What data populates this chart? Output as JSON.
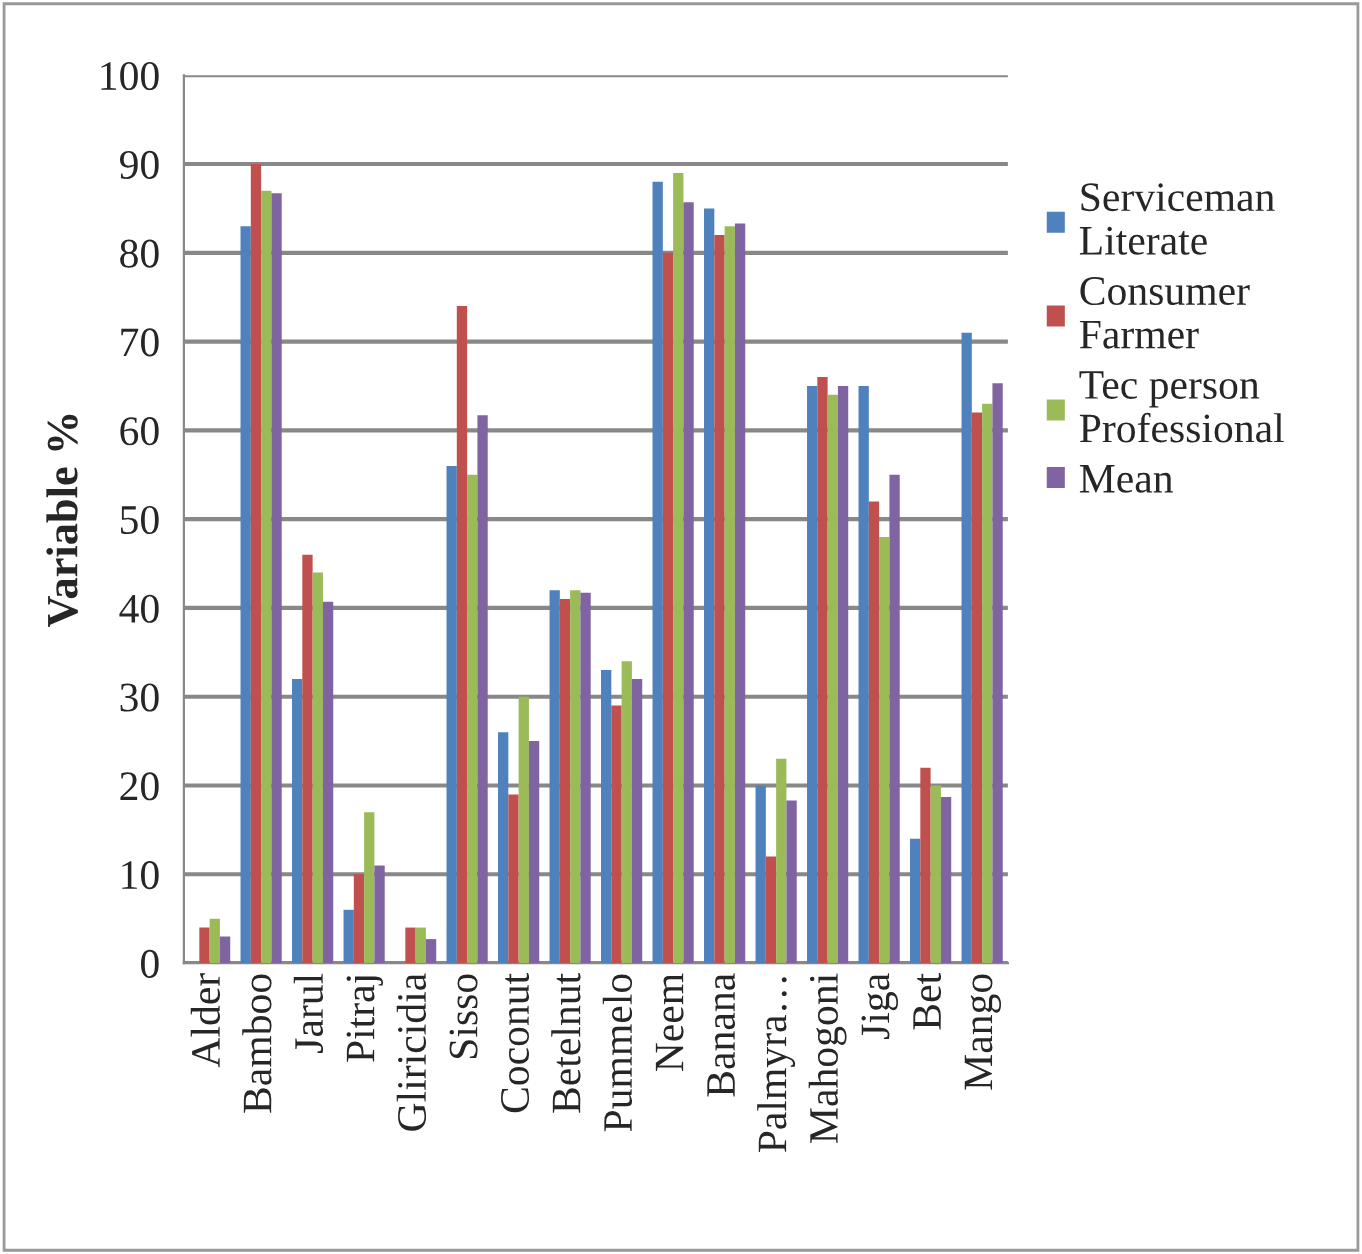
{
  "chart_data": {
    "type": "bar",
    "ylabel": "Variable %",
    "categories": [
      "Alder",
      "Bamboo",
      "Jarul",
      "Pitraj",
      "Gliricidia",
      "Sisso",
      "Coconut",
      "Betelnut",
      "Pummelo",
      "Neem",
      "Banana",
      "Palmyra…",
      "Mahogoni",
      "Jiga",
      "Bet",
      "Mango"
    ],
    "series": [
      {
        "name": "Serviceman\nLiterate",
        "color": "#4f81bd",
        "values": [
          0,
          83,
          32,
          6,
          0,
          56,
          26,
          42,
          33,
          88,
          85,
          20,
          65,
          65,
          14,
          71
        ]
      },
      {
        "name": "Consumer\nFarmer",
        "color": "#c0504d",
        "values": [
          4,
          90,
          46,
          10,
          4,
          74,
          19,
          41,
          29,
          80,
          82,
          12,
          66,
          52,
          22,
          62
        ]
      },
      {
        "name": "Tec person\nProfessional",
        "color": "#9bbb59",
        "values": [
          5,
          87,
          44,
          17,
          4,
          55,
          30,
          42,
          34,
          89,
          83,
          23,
          64,
          48,
          20,
          63
        ]
      },
      {
        "name": "Mean",
        "color": "#8064a2",
        "values": [
          3,
          86.7,
          40.7,
          11,
          2.7,
          61.7,
          25,
          41.7,
          32,
          85.7,
          83.3,
          18.3,
          65,
          55,
          18.7,
          65.3
        ]
      }
    ],
    "ylim": [
      0,
      100
    ],
    "yticks": [
      0,
      10,
      20,
      30,
      40,
      50,
      60,
      70,
      80,
      90,
      100
    ],
    "grid": "y",
    "legend": "right"
  }
}
